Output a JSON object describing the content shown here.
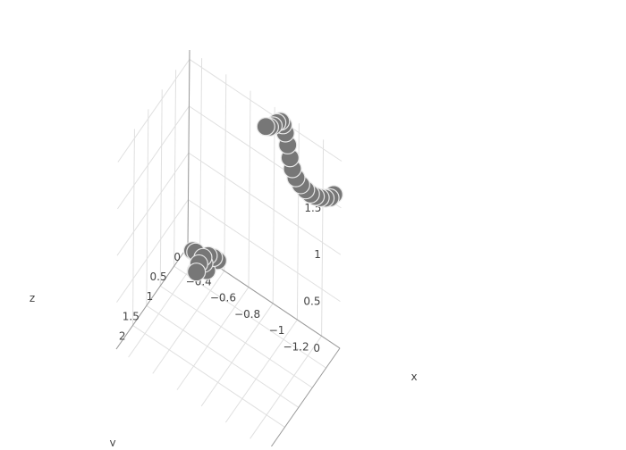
{
  "chart_data": {
    "type": "scatter3d",
    "axes": {
      "x": {
        "title": "x",
        "ticks": [
          "0",
          "0.5",
          "1",
          "1.5",
          "2"
        ]
      },
      "y": {
        "title": "y",
        "ticks": [
          "−1.2",
          "−1",
          "−0.8",
          "−0.6",
          "−0.4"
        ]
      },
      "z": {
        "title": "z",
        "ticks": [
          "0",
          "0.5",
          "1",
          "1.5"
        ]
      }
    },
    "grid": true,
    "marker_color": "#777777",
    "marker_outline": "#e8e8e8",
    "series": [
      {
        "points": [
          {
            "x": 0.05,
            "y": -1.3,
            "z": 1.62
          },
          {
            "x": 0.05,
            "y": -1.27,
            "z": 1.56
          },
          {
            "x": 0.05,
            "y": -1.23,
            "z": 1.52
          },
          {
            "x": 0.05,
            "y": -1.19,
            "z": 1.49
          },
          {
            "x": 0.05,
            "y": -1.15,
            "z": 1.47
          },
          {
            "x": 0.05,
            "y": -1.11,
            "z": 1.46
          },
          {
            "x": 0.05,
            "y": -1.07,
            "z": 1.47
          },
          {
            "x": 0.05,
            "y": -1.03,
            "z": 1.49
          },
          {
            "x": 0.05,
            "y": -0.99,
            "z": 1.53
          },
          {
            "x": 0.05,
            "y": -0.96,
            "z": 1.6
          },
          {
            "x": 0.05,
            "y": -0.94,
            "z": 1.7
          },
          {
            "x": 0.05,
            "y": -0.92,
            "z": 1.82
          },
          {
            "x": 0.05,
            "y": -0.9,
            "z": 1.93
          },
          {
            "x": 0.05,
            "y": -0.88,
            "z": 2.0
          },
          {
            "x": 0.05,
            "y": -0.86,
            "z": 2.02
          },
          {
            "x": 0.05,
            "y": -0.83,
            "z": 1.98
          },
          {
            "x": 0.05,
            "y": -0.8,
            "z": 1.92
          },
          {
            "x": 0.05,
            "y": -0.77,
            "z": 1.88
          },
          {
            "x": 0.05,
            "y": -0.74,
            "z": 1.86
          },
          {
            "x": 0.3,
            "y": -0.3,
            "z": 0.12
          },
          {
            "x": 0.25,
            "y": -0.22,
            "z": 0.15
          },
          {
            "x": 0.18,
            "y": -0.18,
            "z": 0.1
          },
          {
            "x": 0.12,
            "y": -0.2,
            "z": 0.06
          },
          {
            "x": 0.08,
            "y": -0.26,
            "z": 0.05
          },
          {
            "x": 0.06,
            "y": -0.32,
            "z": 0.08
          },
          {
            "x": 0.1,
            "y": -0.36,
            "z": 0.12
          },
          {
            "x": 0.16,
            "y": -0.38,
            "z": 0.16
          },
          {
            "x": 0.22,
            "y": -0.36,
            "z": 0.2
          },
          {
            "x": 0.28,
            "y": -0.33,
            "z": 0.22
          },
          {
            "x": 0.34,
            "y": -0.3,
            "z": 0.2
          },
          {
            "x": 0.4,
            "y": -0.28,
            "z": 0.14
          },
          {
            "x": 0.44,
            "y": -0.27,
            "z": 0.06
          },
          {
            "x": 0.36,
            "y": -0.25,
            "z": 0.02
          },
          {
            "x": 0.2,
            "y": -0.3,
            "z": 0.0
          }
        ]
      }
    ]
  }
}
